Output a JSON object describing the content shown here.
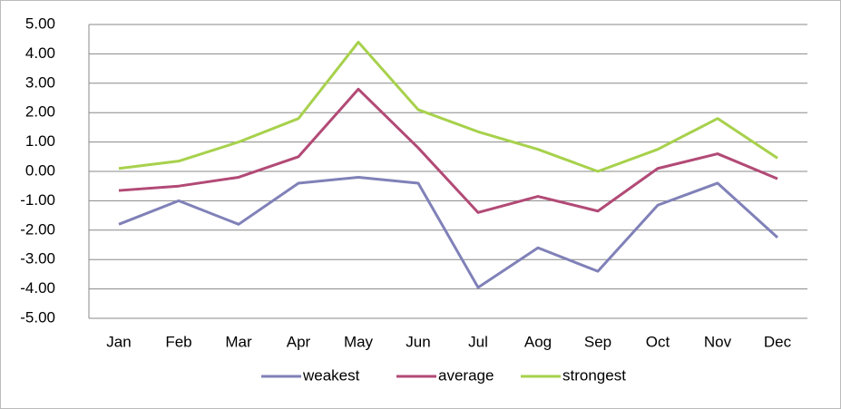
{
  "chart_data": {
    "type": "line",
    "categories": [
      "Jan",
      "Feb",
      "Mar",
      "Apr",
      "May",
      "Jun",
      "Jul",
      "Aog",
      "Sep",
      "Oct",
      "Nov",
      "Dec"
    ],
    "series": [
      {
        "name": "weakest",
        "color": "#8081b8",
        "values": [
          -1.8,
          -1.0,
          -1.8,
          -0.4,
          -0.2,
          -0.4,
          -3.95,
          -2.6,
          -3.4,
          -1.15,
          -0.4,
          -2.25
        ]
      },
      {
        "name": "average",
        "color": "#b24a76",
        "values": [
          -0.65,
          -0.5,
          -0.2,
          0.5,
          2.8,
          0.8,
          -1.4,
          -0.85,
          -1.35,
          0.1,
          0.6,
          -0.25
        ]
      },
      {
        "name": "strongest",
        "color": "#a7d14c",
        "values": [
          0.1,
          0.35,
          1.0,
          1.8,
          4.4,
          2.1,
          1.35,
          0.75,
          0.0,
          0.75,
          1.8,
          0.45
        ]
      }
    ],
    "ylim": [
      -5,
      5
    ],
    "yticks": [
      {
        "value": -5,
        "label": "-5.00"
      },
      {
        "value": -4,
        "label": "-4.00"
      },
      {
        "value": -3,
        "label": "-3.00"
      },
      {
        "value": -2,
        "label": "-2.00"
      },
      {
        "value": -1,
        "label": "-1.00"
      },
      {
        "value": 0,
        "label": "0.00"
      },
      {
        "value": 1,
        "label": "1.00"
      },
      {
        "value": 2,
        "label": "2.00"
      },
      {
        "value": 3,
        "label": "3.00"
      },
      {
        "value": 4,
        "label": "4.00"
      },
      {
        "value": 5,
        "label": "5.00"
      }
    ],
    "grid": true
  }
}
